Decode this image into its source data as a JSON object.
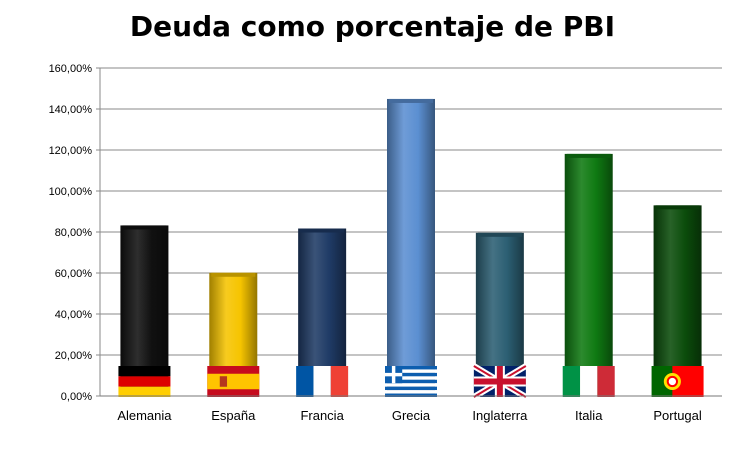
{
  "chart_data": {
    "type": "bar",
    "title": "Deuda como porcentaje de PBI",
    "xlabel": "",
    "ylabel": "",
    "categories": [
      "Alemania",
      "España",
      "Francia",
      "Grecia",
      "Inglaterra",
      "Italia",
      "Portugal"
    ],
    "values": [
      83.2,
      60.1,
      81.7,
      144.9,
      79.6,
      118.1,
      93.0
    ],
    "ylim": [
      0,
      160
    ],
    "yticks": [
      "0,00%",
      "20,00%",
      "40,00%",
      "60,00%",
      "80,00%",
      "100,00%",
      "120,00%",
      "140,00%",
      "160,00%"
    ],
    "grid": true,
    "legend": "none",
    "colors": [
      "#111111",
      "#f6c400",
      "#1f3b66",
      "#5b8fd1",
      "#2c5f73",
      "#0f7a12",
      "#0b4d0b"
    ],
    "flag_icons": [
      "flag-germany-icon",
      "flag-spain-icon",
      "flag-france-icon",
      "flag-greece-icon",
      "flag-uk-icon",
      "flag-italy-icon",
      "flag-portugal-icon"
    ]
  }
}
